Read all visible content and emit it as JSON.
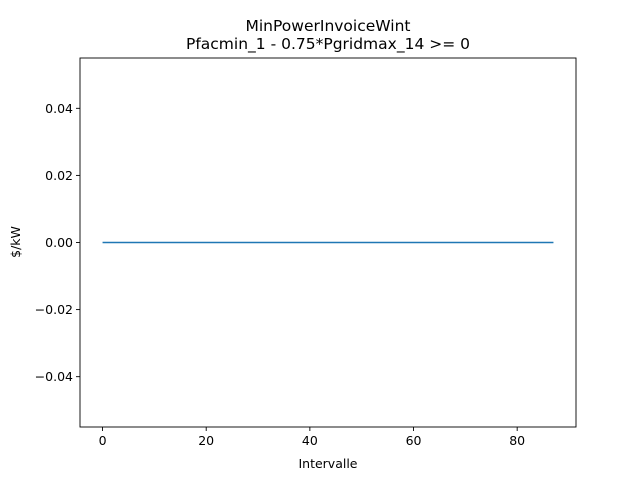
{
  "chart_data": {
    "type": "line",
    "title": "MinPowerInvoiceWint",
    "subtitle": "Pfacmin_1 - 0.75*Pgridmax_14 >= 0",
    "xlabel": "Intervalle",
    "ylabel": "$/kW",
    "xlim": [
      -4.35,
      91.35
    ],
    "ylim": [
      -0.055,
      0.055
    ],
    "xticks": [
      0,
      20,
      40,
      60,
      80
    ],
    "xtick_labels": [
      "0",
      "20",
      "40",
      "60",
      "80"
    ],
    "yticks": [
      -0.04,
      -0.02,
      0.0,
      0.02,
      0.04
    ],
    "ytick_labels": [
      "−0.04",
      "−0.02",
      "0.00",
      "0.02",
      "0.04"
    ],
    "grid": false,
    "series": [
      {
        "color": "#1f77b4",
        "x": [
          0,
          87
        ],
        "y": [
          0.0,
          0.0
        ]
      }
    ]
  }
}
